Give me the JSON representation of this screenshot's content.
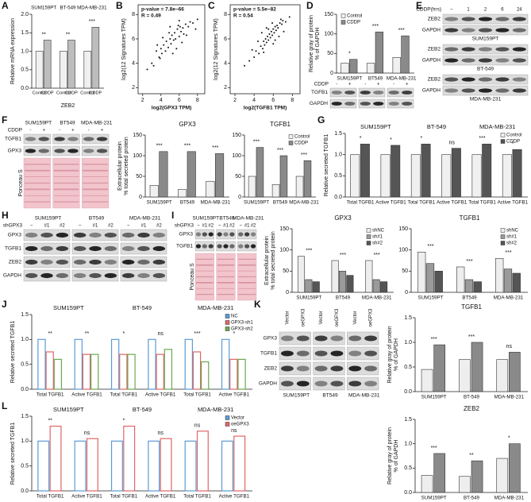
{
  "panel_letters": [
    "A",
    "B",
    "C",
    "D",
    "E",
    "F",
    "G",
    "H",
    "I",
    "J",
    "K",
    "L"
  ],
  "chart_data": [
    {
      "type": "bar",
      "categories": [
        "SUM159PT",
        "BT-549",
        "MDA-MB-231"
      ],
      "category_labels": "top",
      "bar_labels": true,
      "xlabel": "ZEB2",
      "ylabel": [
        "Relative mRNA expression"
      ],
      "ylim": [
        0,
        2
      ],
      "yticks": [
        {
          "value": 0,
          "label": "0.0"
        },
        {
          "value": 0.5,
          "label": "0.5"
        },
        {
          "value": 1,
          "label": "1.0"
        },
        {
          "value": 1.5,
          "label": "1.5"
        },
        {
          "value": 2,
          "label": "2.0"
        }
      ],
      "series": [
        {
          "name": "Control",
          "color": "#f0f0f0",
          "values": [
            1,
            1,
            1
          ]
        },
        {
          "name": "CDDP",
          "color": "#bdbdbd",
          "values": [
            1.3,
            1.3,
            1.65
          ]
        }
      ],
      "annotations": [
        "**",
        "**",
        "***"
      ],
      "legend": "none"
    },
    {
      "type": "scatter",
      "xlabel": "log2(GPX3 TPM)",
      "ylabel": [
        "log2(12 Signatures TPM)"
      ],
      "annotations": [
        "p-value = 7.8e−66",
        "R = 0.49"
      ],
      "xlim": [
        1.5,
        8.8
      ],
      "ylim": [
        1.5,
        8.8
      ],
      "xticks": [
        2,
        4,
        6,
        8
      ],
      "yticks": [
        2,
        4,
        6,
        8
      ],
      "color": "#111",
      "x": [
        2.5,
        3,
        3.2,
        3.5,
        3.8,
        4,
        4.1,
        4.3,
        4.5,
        4.6,
        4.8,
        5,
        5.1,
        5.2,
        5.4,
        5.5,
        5.6,
        5.8,
        6,
        6.1,
        6.2,
        6.4,
        6.5,
        6.7,
        7,
        7.2,
        7.5,
        8,
        3.6,
        4.9,
        5.3,
        5.9,
        6.3,
        4.2,
        5.7,
        6.8,
        3.9,
        5,
        6,
        7.8
      ],
      "y": [
        3.5,
        4,
        3.8,
        5,
        4.5,
        5.2,
        4.8,
        5.5,
        5,
        5.8,
        5.3,
        6,
        5.6,
        6.3,
        5.9,
        6.5,
        6,
        6.8,
        6.2,
        7,
        6.6,
        6.9,
        6.4,
        7.2,
        7,
        7.4,
        7.3,
        7.6,
        5.5,
        6.5,
        4.8,
        7.1,
        5.7,
        6.1,
        5.2,
        6.3,
        4.4,
        7,
        7.5,
        6.8
      ]
    },
    {
      "type": "scatter",
      "xlabel": "log2(TGFB1 TPM)",
      "ylabel": [
        "log2(12 Signatures TPM)"
      ],
      "annotations": [
        "p-value = 5.5e−82",
        "R = 0.54"
      ],
      "xlim": [
        1.5,
        8.8
      ],
      "ylim": [
        1.5,
        8.8
      ],
      "xticks": [
        2,
        4,
        6,
        8
      ],
      "yticks": [
        2,
        4,
        6,
        8
      ],
      "color": "#111",
      "x": [
        3,
        3.5,
        4,
        4.2,
        4.5,
        4.7,
        4.9,
        5,
        5.1,
        5.2,
        5.3,
        5.4,
        5.5,
        5.6,
        5.7,
        5.8,
        5.9,
        6,
        6.1,
        6.2,
        6.3,
        6.4,
        6.5,
        6.7,
        6.9,
        7,
        7.3,
        7.7,
        4.4,
        5,
        5.5,
        6,
        6.6,
        4.8,
        5.9,
        6.2,
        3.8,
        5.3,
        6.8,
        7.1
      ],
      "y": [
        3.8,
        4.2,
        4.5,
        5,
        4.8,
        5.4,
        5.2,
        5.8,
        5.5,
        6,
        5.7,
        6.2,
        5.9,
        6.4,
        6.1,
        6.6,
        6.3,
        6.8,
        6.5,
        7,
        6.7,
        7.1,
        6.9,
        7.3,
        7.2,
        7.5,
        7.4,
        7.8,
        5.8,
        4.9,
        6.8,
        5.6,
        6.2,
        6.5,
        7.3,
        5.9,
        5.1,
        6.9,
        7.6,
        6.6
      ]
    },
    {
      "type": "bar",
      "categories": [
        "SUM159PT",
        "BT549",
        "MDA-MB-231"
      ],
      "ylabel": [
        "Relative gray of protein",
        "% of GAPDH"
      ],
      "ylim": [
        0,
        150
      ],
      "yticks": [
        0,
        50,
        100,
        150
      ],
      "series": [
        {
          "name": "Control",
          "color": "#f0f0f0",
          "values": [
            25,
            25,
            40
          ]
        },
        {
          "name": "CDDP",
          "color": "#8a8a8a",
          "values": [
            35,
            105,
            95
          ]
        }
      ],
      "annotations": [
        "*",
        "***",
        "***"
      ],
      "legend": "top-left"
    },
    {
      "type": "bar",
      "title": "GPX3",
      "categories": [
        "SUM159PT",
        "BT549",
        "MDA-MB-231"
      ],
      "ylabel": [
        "Extracellular protein",
        "% total secreted protein"
      ],
      "ylim": [
        0,
        150
      ],
      "yticks": [
        0,
        50,
        100,
        150
      ],
      "series": [
        {
          "name": "Control",
          "color": "#f0f0f0",
          "values": [
            28,
            18,
            38
          ]
        },
        {
          "name": "CDDP",
          "color": "#8a8a8a",
          "values": [
            110,
            110,
            105
          ]
        }
      ],
      "annotations": [
        "***",
        "***",
        "***"
      ],
      "legend": "none"
    },
    {
      "type": "bar",
      "title": "TGFB1",
      "categories": [
        "SUM159PT",
        "BT549",
        "MDA-MB-231"
      ],
      "ylim": [
        0,
        150
      ],
      "yticks": [
        0,
        50,
        100,
        150
      ],
      "series": [
        {
          "name": "Control",
          "color": "#f0f0f0",
          "values": [
            50,
            30,
            50
          ]
        },
        {
          "name": "CDDP",
          "color": "#8a8a8a",
          "values": [
            120,
            100,
            88
          ]
        }
      ],
      "annotations": [
        "***",
        "***",
        "***"
      ],
      "legend": "top-right"
    },
    {
      "type": "bar",
      "groups": [
        "SUM159PT",
        "BT-549",
        "MDA-MB-231"
      ],
      "categories": [
        "Total TGFB1",
        "Active TGFB1",
        "Total TGFB1",
        "Active TGFB1",
        "Total TGFB1",
        "Active TGFB1"
      ],
      "ylabel": [
        "Relative secreted TGFB1"
      ],
      "ylim": [
        0,
        1.5
      ],
      "yticks": [
        {
          "value": 0,
          "label": "0.0"
        },
        {
          "value": 0.5,
          "label": "0.5"
        },
        {
          "value": 1,
          "label": "1.0"
        },
        {
          "value": 1.5,
          "label": "1.5"
        }
      ],
      "series": [
        {
          "name": "Control",
          "color": "#f0f0f0",
          "values": [
            1,
            1,
            1,
            1,
            1,
            1
          ]
        },
        {
          "name": "CDDP",
          "color": "#555555",
          "values": [
            1.25,
            1.22,
            1.25,
            1.15,
            1.25,
            1.12
          ]
        }
      ],
      "annotations": [
        "*",
        "*",
        "*",
        "ns",
        "***",
        "*"
      ],
      "legend": "top-right"
    },
    {
      "type": "bar",
      "title": "GPX3",
      "categories": [
        "SUM159PT",
        "BT549",
        "MDA-MB-231"
      ],
      "ylabel": [
        "Extracellular protein",
        "% total secreted protein"
      ],
      "ylim": [
        0,
        150
      ],
      "yticks": [
        0,
        50,
        100,
        150
      ],
      "series": [
        {
          "name": "shNC",
          "color": "#eeeeee",
          "values": [
            85,
            75,
            75
          ]
        },
        {
          "name": "sh#1",
          "color": "#9a9a9a",
          "values": [
            30,
            50,
            30
          ]
        },
        {
          "name": "sh#2",
          "color": "#555555",
          "values": [
            25,
            40,
            25
          ]
        }
      ],
      "annotations": [
        "***",
        "***",
        "***"
      ],
      "legend": "top-right"
    },
    {
      "type": "bar",
      "title": "TGFB1",
      "categories": [
        "SUM159PT",
        "BT549",
        "MDA-MB-231"
      ],
      "ylim": [
        0,
        150
      ],
      "yticks": [
        0,
        50,
        100,
        150
      ],
      "series": [
        {
          "name": "shNC",
          "color": "#eeeeee",
          "values": [
            95,
            60,
            80
          ]
        },
        {
          "name": "sh#1",
          "color": "#9a9a9a",
          "values": [
            68,
            30,
            55
          ]
        },
        {
          "name": "sh#2",
          "color": "#555555",
          "values": [
            50,
            25,
            45
          ]
        }
      ],
      "annotations": [
        "***",
        "***",
        "***"
      ],
      "legend": "top-right"
    },
    {
      "type": "bar",
      "style": "outline",
      "groups": [
        "SUM159PT",
        "BT-549",
        "MDA-MB-231"
      ],
      "categories": [
        "Total TGFB1",
        "Active TGFB1",
        "Total TGFB1",
        "Active TGFB1",
        "Total TGFB1",
        "Active TGFB1"
      ],
      "ylabel": [
        "Relative secreted TGFB1"
      ],
      "ylim": [
        0,
        1.5
      ],
      "yticks": [
        {
          "value": 0,
          "label": "0.0"
        },
        {
          "value": 0.5,
          "label": "0.5"
        },
        {
          "value": 1,
          "label": "1.0"
        },
        {
          "value": 1.5,
          "label": "1.5"
        }
      ],
      "series": [
        {
          "name": "NC",
          "color": "#5b9bd5",
          "values": [
            1,
            1,
            1,
            1,
            1,
            1
          ]
        },
        {
          "name": "GPX3-sh1",
          "color": "#e06666",
          "values": [
            0.75,
            0.7,
            0.7,
            0.7,
            0.75,
            0.6
          ]
        },
        {
          "name": "GPX3-sh2",
          "color": "#6aa84f",
          "values": [
            0.6,
            0.7,
            0.7,
            0.8,
            0.55,
            0.6
          ]
        }
      ],
      "annotations": [
        "**",
        "**",
        "*",
        "ns",
        "***",
        "*"
      ],
      "legend": "top-right"
    },
    {
      "type": "bar",
      "title": "TGFB1",
      "categories": [
        "SUM159PT",
        "BT-549",
        "MDA-MB-231"
      ],
      "ylabel": [
        "Relative gray of protein",
        "% of GAPDH"
      ],
      "ylim": [
        0,
        1.5
      ],
      "yticks": [
        {
          "value": 0,
          "label": "0.0"
        },
        {
          "value": 0.5,
          "label": "0.5"
        },
        {
          "value": 1,
          "label": "1.0"
        },
        {
          "value": 1.5,
          "label": "1.5"
        }
      ],
      "series": [
        {
          "name": "Vector",
          "color": "#eeeeee",
          "values": [
            0.45,
            0.65,
            0.65
          ]
        },
        {
          "name": "oeGPX3",
          "color": "#8a8a8a",
          "values": [
            0.95,
            1,
            0.8
          ]
        }
      ],
      "annotations": [
        "***",
        "***",
        "ns"
      ],
      "legend": "none"
    },
    {
      "type": "bar",
      "title": "ZEB2",
      "categories": [
        "SUM159PT",
        "BT-549",
        "MDA-MB-231"
      ],
      "ylabel": [
        "Relative gray of protein",
        "% of GAPDH"
      ],
      "ylim": [
        0,
        1.5
      ],
      "yticks": [
        {
          "value": 0,
          "label": "0.0"
        },
        {
          "value": 0.5,
          "label": "0.5"
        },
        {
          "value": 1,
          "label": "1.0"
        },
        {
          "value": 1.5,
          "label": "1.5"
        }
      ],
      "series": [
        {
          "name": "Vector",
          "color": "#eeeeee",
          "values": [
            0.35,
            0.33,
            0.7
          ]
        },
        {
          "name": "oeGPX3",
          "color": "#8a8a8a",
          "values": [
            0.8,
            0.65,
            1
          ]
        }
      ],
      "annotations": [
        "***",
        "**",
        "*"
      ],
      "legend": "none"
    },
    {
      "type": "bar",
      "style": "outline",
      "groups": [
        "SUM159PT",
        "BT-549",
        "MDA-MB-231"
      ],
      "categories": [
        "Total TGFB1",
        "Active TGFB1",
        "Total TGFB1",
        "Active TGFB1",
        "Total TGFB1",
        "Active TGFB1"
      ],
      "ylabel": [
        "Relative secreted TGFB1"
      ],
      "ylim": [
        0,
        1.5
      ],
      "yticks": [
        {
          "value": 0,
          "label": "0.0"
        },
        {
          "value": 0.5,
          "label": "0.5"
        },
        {
          "value": 1,
          "label": "1.0"
        },
        {
          "value": 1.5,
          "label": "1.5"
        }
      ],
      "series": [
        {
          "name": "Vector",
          "color": "#5b9bd5",
          "values": [
            1,
            1,
            1,
            1,
            1,
            1
          ]
        },
        {
          "name": "oeGPX3",
          "color": "#e06666",
          "values": [
            1.3,
            1.05,
            1.3,
            1.05,
            1.2,
            1.1
          ]
        }
      ],
      "annotations": [
        "**",
        "ns",
        "*",
        "ns",
        "ns",
        "ns"
      ],
      "legend": "top-right"
    }
  ],
  "blots": {
    "D": {
      "condition_label": "CDDP",
      "lanes": [
        "-",
        "+"
      ],
      "rows": [
        "TGFB1",
        "GAPDH"
      ]
    },
    "E": {
      "condition_label": "CDDP(hrs)",
      "lanes": [
        "−",
        "1",
        "2",
        "6",
        "24"
      ],
      "rows": [
        "ZEB2",
        "GAPDH"
      ],
      "cell_lines": [
        "SUM159PT",
        "BT-549",
        "MDA-MB-231"
      ]
    },
    "F": {
      "cell_lines": [
        "SUM159PT",
        "BT549",
        "MDA-MB-231"
      ],
      "condition_label": "CDDP",
      "lanes": [
        "-",
        "+"
      ],
      "rows": [
        "TGFB1",
        "GPX3"
      ],
      "stain": "Ponceau S"
    },
    "H": {
      "cell_lines": [
        "SUM159PT",
        "BT549",
        "MDA-MB-231"
      ],
      "condition_label": "shGPX3",
      "lanes": [
        "−",
        "#1",
        "#2"
      ],
      "rows": [
        "GPX3",
        "TGFB1",
        "ZEB2",
        "GAPDH"
      ]
    },
    "I": {
      "cell_lines": [
        "SUM159PT",
        "BT549",
        "MDA-MB-231"
      ],
      "condition_label": "shGPX3",
      "lanes": [
        "−",
        "#1",
        "#2"
      ],
      "rows": [
        "GPX3",
        "TGFB1"
      ],
      "stain": "Ponceau S"
    },
    "K": {
      "cell_lines": [
        "SUM159PT",
        "BT549",
        "MDA-MB-231"
      ],
      "lanes": [
        "Vector",
        "oeGPX3"
      ],
      "rows": [
        "GPX3",
        "TGFB1",
        "ZEB2",
        "GAPDH"
      ]
    }
  }
}
